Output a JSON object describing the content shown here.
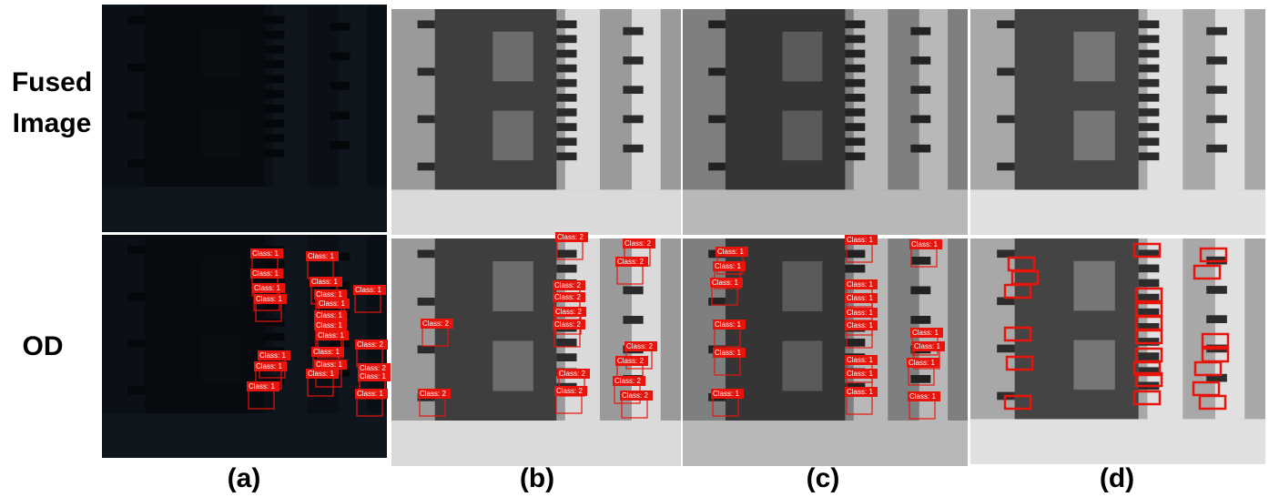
{
  "row_labels": {
    "fused": [
      "Fused",
      "Image"
    ],
    "od": "OD"
  },
  "columns": [
    {
      "label": "(a)",
      "detections": [
        "Class: 1",
        "Class: 1",
        "Class: 1",
        "Class: 1",
        "Class: 1",
        "Class: 1",
        "Class: 1",
        "Class: 1",
        "Class: 1",
        "Class: 1",
        "Class: 1",
        "Class: 1",
        "Class: 2",
        "Class: 1",
        "Class: 1",
        "Class: 1",
        "Class: 1",
        "Class: 1",
        "Class: 1",
        "Class: 2",
        "Class: 1",
        "Class: 1"
      ]
    },
    {
      "label": "(b)",
      "detections": [
        "Class: 2",
        "Class: 2",
        "Class: 2",
        "Class: 2",
        "Class: 2",
        "Class: 2",
        "Class: 2",
        "Class: 2",
        "Class: 2",
        "Class: 2",
        "Class: 2",
        "Class: 2",
        "Class: 2",
        "Class: 2",
        "Class: 2"
      ]
    },
    {
      "label": "(c)",
      "detections": [
        "Class: 1",
        "Class: 1",
        "Class: 1",
        "Class: 1",
        "Class: 1",
        "Class: 1",
        "Class: 1",
        "Class: 1",
        "Class: 1",
        "Class: 1",
        "Class: 1",
        "Class: 1",
        "Class: 1",
        "Class: 1",
        "Class: 1",
        "Class: 1",
        "Class: 1",
        "Class: 1",
        "Class: 1"
      ]
    },
    {
      "label": "(d)"
    }
  ]
}
